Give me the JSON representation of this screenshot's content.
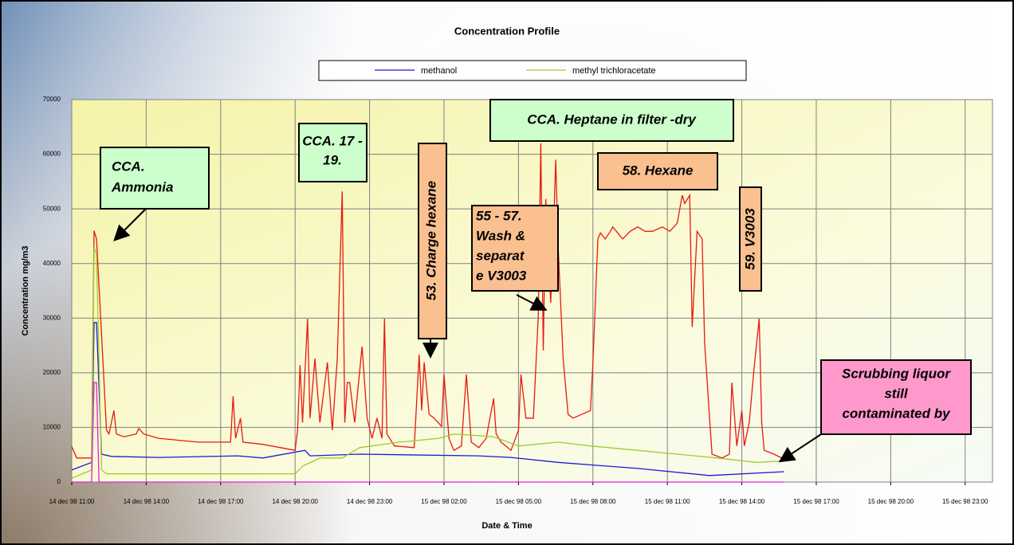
{
  "chart_data": {
    "type": "line",
    "title": "Concentration Profile",
    "x_label": "Date & Time",
    "y_label": "Concentration mg/m3",
    "xlim": [
      0,
      37.1
    ],
    "ylim": [
      0,
      70000
    ],
    "yticks": [
      0,
      10000,
      20000,
      30000,
      40000,
      50000,
      60000,
      70000
    ],
    "xticks": [
      {
        "value": 0,
        "label": "14 dec 98 11:00"
      },
      {
        "value": 3,
        "label": "14 dec 98 14:00"
      },
      {
        "value": 6,
        "label": "14 dec 98 17:00"
      },
      {
        "value": 9,
        "label": "14 dec 98 20:00"
      },
      {
        "value": 12,
        "label": "14 dec 98 23:00"
      },
      {
        "value": 15,
        "label": "15 dec 98 02:00"
      },
      {
        "value": 18,
        "label": "15 dec 98 05:00"
      },
      {
        "value": 21,
        "label": "15 dec 98 08:00"
      },
      {
        "value": 24,
        "label": "15 dec 98 11:00"
      },
      {
        "value": 27,
        "label": "15 dec 98 14:00"
      },
      {
        "value": 30,
        "label": "15 dec 98 17:00"
      },
      {
        "value": 33,
        "label": "15 dec 98 20:00"
      },
      {
        "value": 36,
        "label": "15 dec 98 23:00"
      }
    ],
    "grid": true,
    "legend_position": "top",
    "series": [
      {
        "color": "#e8190f",
        "x": [
          0,
          0.2,
          0.8,
          0.9,
          1.0,
          1.2,
          1.4,
          1.5,
          1.7,
          1.8,
          2.1,
          2.6,
          2.7,
          2.9,
          3.5,
          5.1,
          6.4,
          6.5,
          6.6,
          6.8,
          6.9,
          7.7,
          9.0,
          9.1,
          9.2,
          9.3,
          9.5,
          9.6,
          9.8,
          10.0,
          10.3,
          10.5,
          10.7,
          10.9,
          11.0,
          11.1,
          11.2,
          11.4,
          11.7,
          11.9,
          12.1,
          12.3,
          12.5,
          12.6,
          12.7,
          13.0,
          13.8,
          14.0,
          14.1,
          14.2,
          14.4,
          14.6,
          14.9,
          15.0,
          15.2,
          15.4,
          15.7,
          15.9,
          16.1,
          16.4,
          16.7,
          17.0,
          17.1,
          17.3,
          17.7,
          18.0,
          18.1,
          18.3,
          18.6,
          18.8,
          18.9,
          19.0,
          19.1,
          19.3,
          19.4,
          19.5,
          19.6,
          19.8,
          20.0,
          20.2,
          20.9,
          21.0,
          21.2,
          21.3,
          21.5,
          21.7,
          21.8,
          22.2,
          22.5,
          22.8,
          23.1,
          23.4,
          23.8,
          24.1,
          24.4,
          24.6,
          24.7,
          24.9,
          25.0,
          25.2,
          25.4,
          25.5,
          25.7,
          25.8,
          26.2,
          26.5,
          26.6,
          26.8,
          27.0,
          27.1,
          27.3,
          27.5,
          27.7,
          27.8,
          27.9,
          28.3,
          28.6
        ],
        "values": [
          6500,
          4400,
          4400,
          46000,
          44500,
          27000,
          9500,
          8800,
          13100,
          8800,
          8300,
          8800,
          9800,
          8800,
          8000,
          7300,
          7300,
          15700,
          8000,
          11700,
          7300,
          6900,
          5800,
          9500,
          21400,
          10900,
          29900,
          11700,
          22600,
          10900,
          21900,
          9500,
          22600,
          53200,
          10900,
          18200,
          18200,
          10900,
          24800,
          11700,
          8000,
          11700,
          8000,
          29900,
          8800,
          6600,
          6300,
          23300,
          13100,
          21900,
          12400,
          11700,
          10200,
          19700,
          8000,
          5800,
          6600,
          19700,
          7300,
          6300,
          8000,
          15300,
          8800,
          7300,
          5800,
          9500,
          19700,
          11700,
          11700,
          30600,
          62000,
          24100,
          51800,
          32800,
          44500,
          59000,
          43000,
          22600,
          12400,
          11700,
          13100,
          21900,
          44500,
          45600,
          44500,
          45900,
          46700,
          44500,
          45900,
          46700,
          45900,
          45900,
          46700,
          45900,
          47400,
          52500,
          51000,
          52500,
          28400,
          45900,
          44500,
          25500,
          11700,
          5100,
          4400,
          5100,
          18200,
          6600,
          13100,
          6600,
          10900,
          21100,
          29900,
          10900,
          5800,
          5100,
          4400
        ]
      },
      {
        "name": "methanol",
        "color": "#1a1ad6",
        "x": [
          0,
          0.8,
          0.9,
          1.0,
          1.2,
          1.6,
          3.5,
          6.7,
          7.7,
          9.4,
          9.6,
          11.6,
          16.4,
          17.7,
          19.6,
          22.8,
          25.7,
          28.7
        ],
        "values": [
          2200,
          3600,
          29200,
          29200,
          5100,
          4700,
          4500,
          4800,
          4400,
          5800,
          4800,
          5100,
          4800,
          4500,
          3600,
          2500,
          1200,
          1900
        ]
      },
      {
        "name": "methyl trichloracetate",
        "color": "#9acd32",
        "x": [
          0,
          0.8,
          0.9,
          1.0,
          1.2,
          1.4,
          3.5,
          9.0,
          9.3,
          10.0,
          10.9,
          11.6,
          13.2,
          14.8,
          15.4,
          17.0,
          18.0,
          19.6,
          20.9,
          22.8,
          24.4,
          26.0,
          27.6,
          28.7
        ],
        "values": [
          700,
          2200,
          43000,
          41600,
          2200,
          1500,
          1500,
          1500,
          2900,
          4400,
          4400,
          6300,
          7300,
          8000,
          8800,
          8300,
          6600,
          7300,
          6600,
          5800,
          5100,
          4400,
          3600,
          3900
        ]
      },
      {
        "color": "#e020e0",
        "x": [
          0,
          0.8,
          0.9,
          1.0,
          1.1,
          28.7
        ],
        "values": [
          0,
          0,
          18200,
          18200,
          0,
          0
        ]
      }
    ],
    "annotations": [
      {
        "lines": [
          "CCA.",
          "Ammonia"
        ]
      },
      {
        "lines": [
          "CCA.  17 -",
          "19."
        ]
      },
      {
        "lines": [
          "53. Charge hexane"
        ]
      },
      {
        "lines": [
          "55 - 57.",
          "Wash &",
          "separat",
          "e V3003"
        ]
      },
      {
        "lines": [
          "CCA.  Heptane in filter -dry"
        ]
      },
      {
        "lines": [
          "58. Hexane"
        ]
      },
      {
        "lines": [
          "59. V3003"
        ]
      },
      {
        "lines": [
          "Scrubbing liquor",
          "still",
          "contaminated by"
        ]
      }
    ]
  }
}
